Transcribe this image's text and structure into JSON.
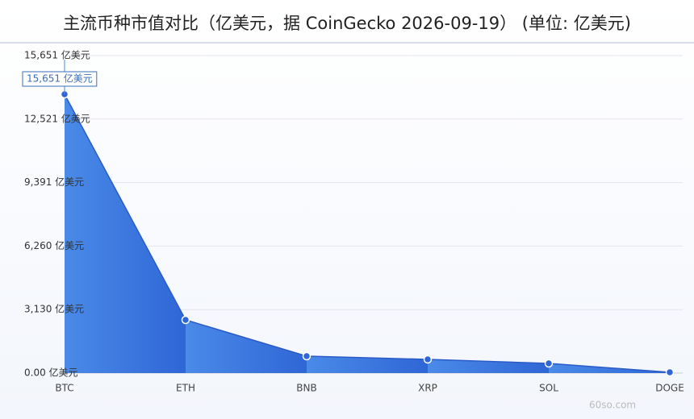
{
  "chart_data": {
    "type": "area",
    "title": "主流币种市值对比（亿美元，据 CoinGecko 2026-09-19） (单位: 亿美元)",
    "categories": [
      "BTC",
      "ETH",
      "BNB",
      "XRP",
      "SOL",
      "DOGE"
    ],
    "values": [
      13745,
      2622,
      834,
      675,
      477,
      40
    ],
    "color": "#3b78e0",
    "ylim": [
      0,
      15651
    ],
    "yticks": [
      {
        "value": 0,
        "label": "0.00 亿美元"
      },
      {
        "value": 3130,
        "label": "3,130 亿美元"
      },
      {
        "value": 6260,
        "label": "6,260 亿美元"
      },
      {
        "value": 9391,
        "label": "9,391 亿美元"
      },
      {
        "value": 12521,
        "label": "12,521 亿美元"
      },
      {
        "value": 15651,
        "label": "15,651 亿美元"
      }
    ],
    "grid": true,
    "annotation": "15,651 亿美元",
    "watermark": "60so.com"
  }
}
